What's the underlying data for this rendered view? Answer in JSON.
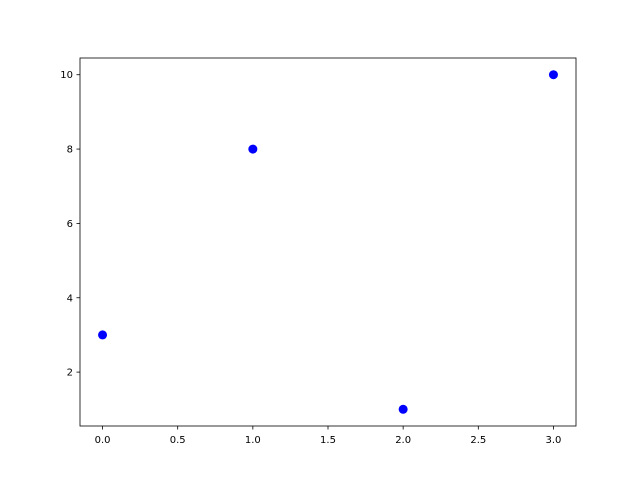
{
  "chart_data": {
    "type": "scatter",
    "title": "",
    "xlabel": "",
    "ylabel": "",
    "x": [
      0,
      1,
      2,
      3
    ],
    "y": [
      3,
      8,
      1,
      10
    ],
    "xlim": [
      -0.15,
      3.15
    ],
    "ylim": [
      0.55,
      10.45
    ],
    "xticks": [
      "0.0",
      "0.5",
      "1.0",
      "1.5",
      "2.0",
      "2.5",
      "3.0"
    ],
    "yticks": [
      "2",
      "4",
      "6",
      "8",
      "10"
    ],
    "grid": false,
    "marker_color": "#0000ff"
  }
}
